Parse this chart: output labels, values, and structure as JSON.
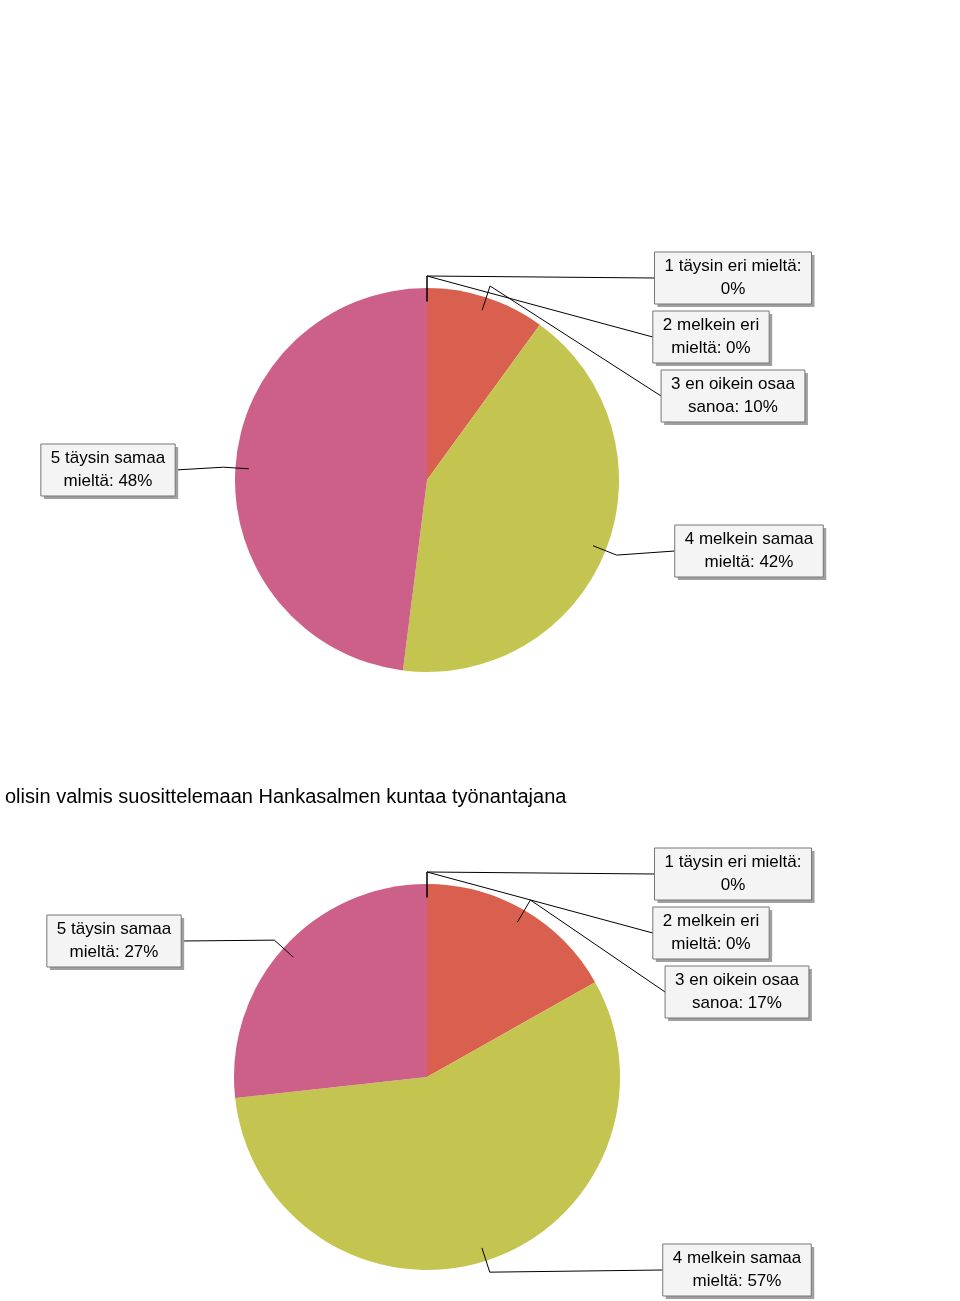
{
  "chart_data": [
    {
      "type": "pie",
      "categories": [
        "1 täysin eri mieltä",
        "2 melkein eri mieltä",
        "3 en oikein osaa sanoa",
        "4 melkein samaa mieltä",
        "5 täysin samaa mieltä"
      ],
      "values": [
        0,
        0,
        10,
        42,
        48
      ],
      "value_labels": [
        ": 0%",
        ": 0%",
        ": 10%",
        ": 42%",
        ": 48%"
      ],
      "colors": [
        "#4f81bd",
        "#9bbb59",
        "#d9604e",
        "#c4c450",
        "#cc6088"
      ]
    },
    {
      "type": "pie",
      "title": "olisin valmis suosittelemaan Hankasalmen kuntaa työnantajana",
      "categories": [
        "1 täysin eri mieltä",
        "2 melkein eri mieltä",
        "3 en oikein osaa sanoa",
        "4 melkein samaa mieltä",
        "5 täysin samaa mieltä"
      ],
      "values": [
        0,
        0,
        17,
        57,
        27
      ],
      "value_labels": [
        ": 0%",
        ": 0%",
        ": 17%",
        ": 57%",
        ": 27%"
      ],
      "colors": [
        "#4f81bd",
        "#9bbb59",
        "#d9604e",
        "#c4c450",
        "#cc6088"
      ]
    }
  ]
}
